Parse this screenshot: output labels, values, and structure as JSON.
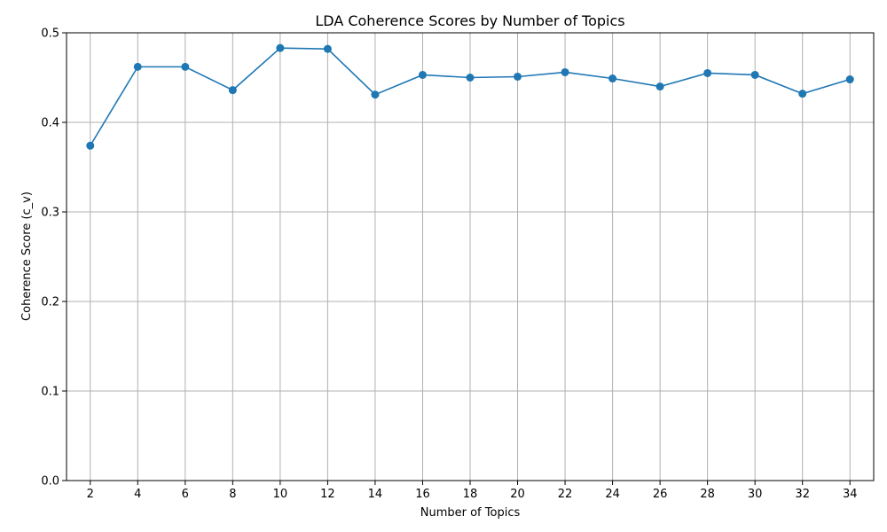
{
  "chart_data": {
    "type": "line",
    "title": "LDA Coherence Scores by Number of Topics",
    "xlabel": "Number of Topics",
    "ylabel": "Coherence Score (c_v)",
    "x": [
      2,
      4,
      6,
      8,
      10,
      12,
      14,
      16,
      18,
      20,
      22,
      24,
      26,
      28,
      30,
      32,
      34
    ],
    "y": [
      0.374,
      0.462,
      0.462,
      0.436,
      0.483,
      0.482,
      0.431,
      0.453,
      0.45,
      0.451,
      0.456,
      0.449,
      0.44,
      0.455,
      0.453,
      0.432,
      0.448
    ],
    "xlim": [
      1,
      35
    ],
    "ylim": [
      0,
      0.5
    ],
    "yticks": [
      "0.0",
      "0.1",
      "0.2",
      "0.3",
      "0.4",
      "0.5"
    ],
    "xticks": [
      "2",
      "4",
      "6",
      "8",
      "10",
      "12",
      "14",
      "16",
      "18",
      "20",
      "22",
      "24",
      "26",
      "28",
      "30",
      "32",
      "34"
    ],
    "grid": true,
    "marker": "circle",
    "line_color": "#1f77b4"
  }
}
